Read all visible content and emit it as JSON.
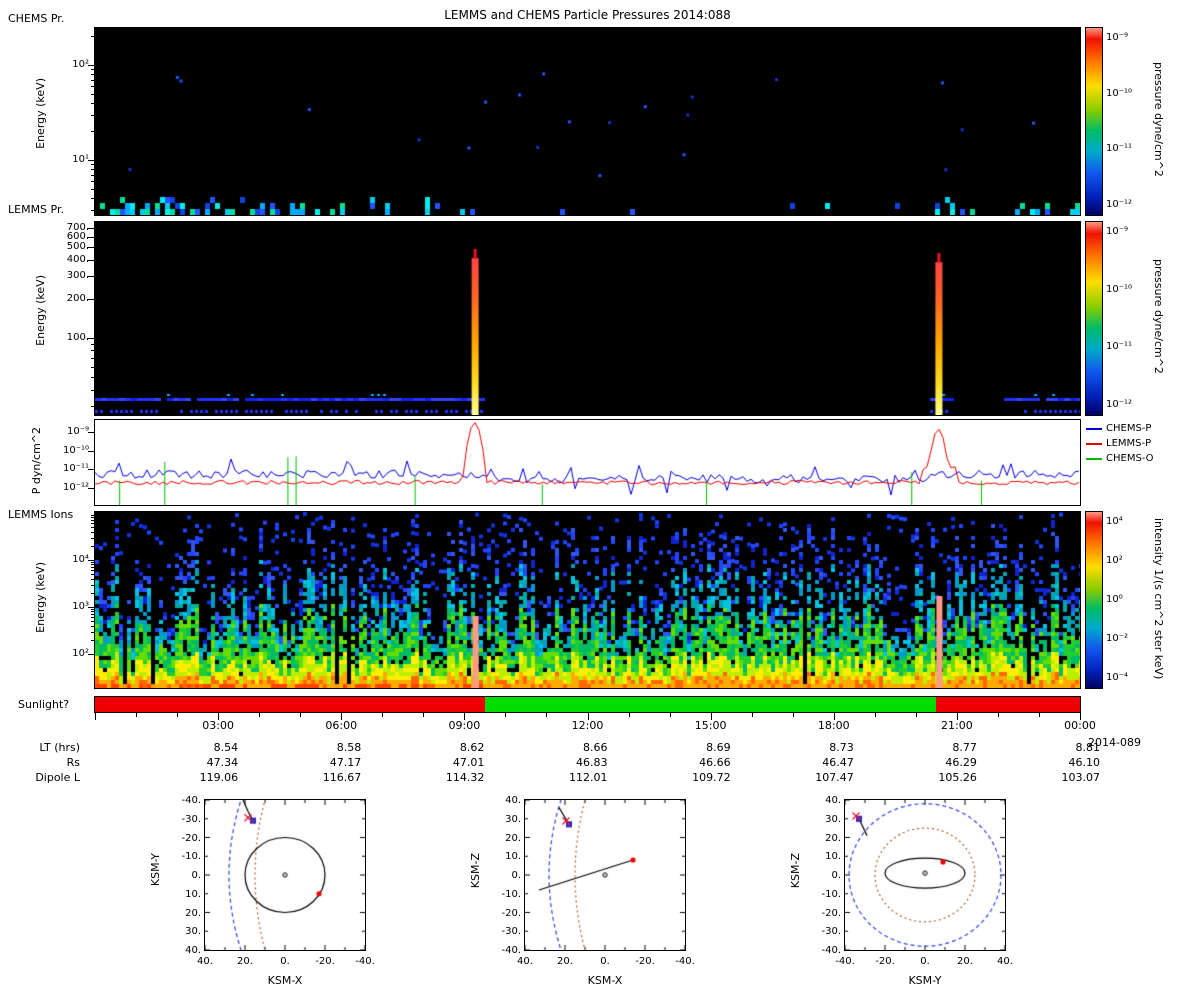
{
  "title": "LEMMS and CHEMS Particle Pressures  2014:088",
  "time_axis": {
    "tick_labels": [
      "03:00",
      "06:00",
      "09:00",
      "12:00",
      "15:00",
      "18:00",
      "21:00",
      "00:00"
    ],
    "date_label": "2014-089",
    "rows": [
      {
        "label": "LT (hrs)",
        "values": [
          "8.54",
          "8.58",
          "8.62",
          "8.66",
          "8.69",
          "8.73",
          "8.77",
          "8.81"
        ]
      },
      {
        "label": "Rs",
        "values": [
          "47.34",
          "47.17",
          "47.01",
          "46.83",
          "46.66",
          "46.47",
          "46.29",
          "46.10"
        ]
      },
      {
        "label": "Dipole L",
        "values": [
          "119.06",
          "116.67",
          "114.32",
          "112.01",
          "109.72",
          "107.47",
          "105.26",
          "103.07"
        ]
      }
    ]
  },
  "events": {
    "injection_hours": [
      9.25,
      20.55
    ]
  },
  "chart_data": [
    {
      "type": "heatmap",
      "name": "chems-pressure-spectrogram",
      "label": "CHEMS Pr.",
      "ylabel": "Energy (keV)",
      "ylim_keV": [
        3,
        245
      ],
      "yticks": [
        {
          "label": "10²",
          "value": 100
        },
        {
          "label": "10¹",
          "value": 10
        }
      ],
      "colorbar": {
        "label": "pressure dyne/cm^2",
        "ticks": [
          "10⁻⁹",
          "10⁻¹⁰",
          "10⁻¹¹",
          "10⁻¹²"
        ],
        "range_log10": [
          -12,
          -9
        ]
      },
      "activity_segments": [
        {
          "h0": 0,
          "h1": 5,
          "density": 0.55
        },
        {
          "h0": 5,
          "h1": 7.2,
          "density": 0.4
        },
        {
          "h0": 7.2,
          "h1": 9.6,
          "density": 0.32
        },
        {
          "h0": 9.6,
          "h1": 12.6,
          "density": 0.12
        },
        {
          "h0": 12.6,
          "h1": 20.3,
          "density": 0.04
        },
        {
          "h0": 20.3,
          "h1": 20.9,
          "density": 0.5
        },
        {
          "h0": 20.9,
          "h1": 22.1,
          "density": 0.05
        },
        {
          "h0": 22.1,
          "h1": 24,
          "density": 0.45
        }
      ]
    },
    {
      "type": "heatmap",
      "name": "lemms-pressure-spectrogram",
      "label": "LEMMS Pr.",
      "ylabel": "Energy (keV)",
      "ylim_keV": [
        25,
        750
      ],
      "yticks": [
        {
          "label": "700.",
          "value": 700
        },
        {
          "label": "600.",
          "value": 600
        },
        {
          "label": "500.",
          "value": 500
        },
        {
          "label": "400.",
          "value": 400
        },
        {
          "label": "300.",
          "value": 300
        },
        {
          "label": "200.",
          "value": 200
        },
        {
          "label": "100.",
          "value": 100
        }
      ],
      "colorbar": {
        "label": "pressure dyne/cm^2",
        "ticks": [
          "10⁻⁹",
          "10⁻¹⁰",
          "10⁻¹¹",
          "10⁻¹²"
        ],
        "range_log10": [
          -12,
          -9
        ]
      },
      "band_energy_keV": 33,
      "band_hour_ranges": [
        [
          0,
          9.4
        ],
        [
          20.35,
          20.8
        ],
        [
          22.15,
          24
        ]
      ],
      "injections": [
        {
          "hour": 9.25,
          "peak_energy_keV": 450
        },
        {
          "hour": 20.55,
          "peak_energy_keV": 430
        }
      ]
    },
    {
      "type": "line",
      "name": "particle-pressure-lines",
      "ylabel": "P dyn/cm^2",
      "ylim_log10": [
        -12.5,
        -8.4
      ],
      "yticks": [
        {
          "label": "10⁻⁹",
          "log": -9
        },
        {
          "label": "10⁻¹⁰",
          "log": -10
        },
        {
          "label": "10⁻¹¹",
          "log": -11
        },
        {
          "label": "10⁻¹²",
          "log": -12
        }
      ],
      "series": [
        {
          "name": "CHEMS-P",
          "color": "#0000dd",
          "baseline_log10": -11.25,
          "middle_baseline_log10": -11.5
        },
        {
          "name": "LEMMS-P",
          "color": "#ee0000",
          "baseline_log10": -11.7,
          "spikes": [
            {
              "hour": 9.25,
              "peak_log10": -8.5
            },
            {
              "hour": 20.55,
              "peak_log10": -8.85
            }
          ]
        },
        {
          "name": "CHEMS-O",
          "color": "#00bb00",
          "baseline_log10": -12.3,
          "spikes": [
            {
              "hour": 0.6,
              "log10": -11.6
            },
            {
              "hour": 1.7,
              "log10": -10.6
            },
            {
              "hour": 4.7,
              "log10": -10.35
            },
            {
              "hour": 4.9,
              "log10": -10.3
            },
            {
              "hour": 7.8,
              "log10": -11.4
            },
            {
              "hour": 10.9,
              "log10": -11.8
            },
            {
              "hour": 14.9,
              "log10": -11.6
            },
            {
              "hour": 19.9,
              "log10": -11.15
            },
            {
              "hour": 21.6,
              "log10": -11.6
            }
          ]
        }
      ]
    },
    {
      "type": "heatmap",
      "name": "lemms-ion-intensity-spectrogram",
      "label": "LEMMS Ions",
      "ylabel": "Energy (keV)",
      "ylim_keV": [
        20,
        100000
      ],
      "yticks": [
        {
          "label": "10⁴",
          "value": 10000
        },
        {
          "label": "10³",
          "value": 1000
        },
        {
          "label": "10²",
          "value": 100
        }
      ],
      "colorbar": {
        "label": "intensity 1/(s cm^2 ster keV)",
        "ticks": [
          "10⁴",
          "10²",
          "10⁰",
          "10⁻²",
          "10⁻⁴"
        ],
        "range_log10": [
          -5,
          4
        ]
      },
      "injections": [
        {
          "hour": 9.25
        },
        {
          "hour": 20.55
        }
      ]
    },
    {
      "type": "interval",
      "name": "sunlight-indicator",
      "label": "Sunlight?",
      "segments": [
        {
          "start_hour": 0,
          "end_hour": 9.5,
          "color": "#ee0000"
        },
        {
          "start_hour": 9.5,
          "end_hour": 20.5,
          "color": "#00dd00"
        },
        {
          "start_hour": 20.5,
          "end_hour": 24,
          "color": "#ee0000"
        }
      ]
    },
    {
      "type": "scatter",
      "name": "trajectory-ksm-x-y",
      "xlabel": "KSM-X",
      "ylabel": "KSM-Y",
      "xticks": [
        "40.",
        "20.",
        "0.",
        "-20.",
        "-40."
      ],
      "yticks": [
        "-40.",
        "-30.",
        "-20.",
        "-10.",
        "0.",
        "10.",
        "20.",
        "30.",
        "40."
      ],
      "x_range_lr": [
        40,
        -40
      ],
      "y_range_tb": [
        -40,
        40
      ],
      "bow_shock": {
        "standoff": 28,
        "flare": 6,
        "color": "#3344dd"
      },
      "magnetopause": {
        "standoff": 15,
        "flare": 5,
        "color": "#b05a20"
      },
      "orbit_circle": {
        "cx": 0,
        "cy": 0,
        "r": 20
      },
      "saturn": [
        0,
        0
      ],
      "red_dot": [
        -17,
        10
      ],
      "trail": [
        [
          21,
          -40
        ],
        [
          18.5,
          -34
        ],
        [
          16,
          -29
        ]
      ],
      "spacecraft": [
        16,
        -29
      ],
      "cross": [
        18.5,
        -30.5
      ]
    },
    {
      "type": "scatter",
      "name": "trajectory-ksm-x-z",
      "xlabel": "KSM-X",
      "ylabel": "KSM-Z",
      "xticks": [
        "40.",
        "20.",
        "0.",
        "-20.",
        "-40."
      ],
      "yticks": [
        "40.",
        "30.",
        "20.",
        "10.",
        "0.",
        "-10.",
        "-20.",
        "-30.",
        "-40."
      ],
      "x_range_lr": [
        40,
        -40
      ],
      "y_range_tb": [
        40,
        -40
      ],
      "bow_shock": {
        "standoff": 28,
        "flare": 6,
        "color": "#3344dd"
      },
      "magnetopause": {
        "standoff": 15,
        "flare": 5,
        "color": "#b05a20"
      },
      "orbit_line": [
        [
          33,
          -8
        ],
        [
          -14,
          8
        ]
      ],
      "saturn": [
        0,
        0
      ],
      "red_dot": [
        -14,
        8
      ],
      "trail": [
        [
          23,
          36
        ],
        [
          18,
          27
        ]
      ],
      "spacecraft": [
        18,
        27
      ],
      "cross": [
        19.5,
        28.8
      ]
    },
    {
      "type": "scatter",
      "name": "trajectory-ksm-y-z",
      "xlabel": "KSM-Y",
      "ylabel": "KSM-Z",
      "xticks": [
        "-40.",
        "-20.",
        "0.",
        "20.",
        "40."
      ],
      "yticks": [
        "40.",
        "30.",
        "20.",
        "10.",
        "0.",
        "-10.",
        "-20.",
        "-30.",
        "-40."
      ],
      "x_range_lr": [
        -40,
        40
      ],
      "y_range_tb": [
        40,
        -40
      ],
      "bow_circle": {
        "r": 38,
        "color": "#3344dd"
      },
      "mp_circle": {
        "r": 25,
        "color": "#b05a20"
      },
      "orbit_ellipse": {
        "cx": 0,
        "cy": 1,
        "rx": 20,
        "ry": 8
      },
      "saturn": [
        0,
        1
      ],
      "red_dot": [
        9,
        7
      ],
      "trail": [
        [
          -29,
          21
        ],
        [
          -33,
          30
        ]
      ],
      "spacecraft": [
        -33,
        30
      ],
      "cross": [
        -34.5,
        31.5
      ]
    }
  ]
}
